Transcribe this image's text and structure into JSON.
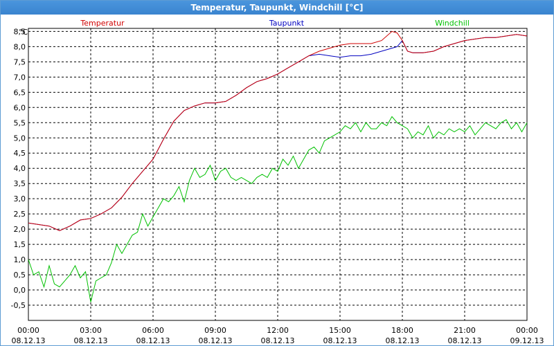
{
  "window": {
    "title": "Temperatur, Taupunkt, Windchill [°C]"
  },
  "chart_data": {
    "type": "line",
    "title": "Temperatur, Taupunkt, Windchill [°C]",
    "ylabel": "°C",
    "ylim": [
      -1.0,
      8.6
    ],
    "y_ticks": [
      "8,5",
      "8,0",
      "7,5",
      "7,0",
      "6,5",
      "6,0",
      "5,5",
      "5,0",
      "4,5",
      "4,0",
      "3,5",
      "3,0",
      "2,5",
      "2,0",
      "1,5",
      "1,0",
      "0,5",
      "0,0",
      "-0,5"
    ],
    "x_ticks": [
      {
        "time": "00:00",
        "date": "08.12.13"
      },
      {
        "time": "03:00",
        "date": "08.12.13"
      },
      {
        "time": "06:00",
        "date": "08.12.13"
      },
      {
        "time": "09:00",
        "date": "08.12.13"
      },
      {
        "time": "12:00",
        "date": "08.12.13"
      },
      {
        "time": "15:00",
        "date": "08.12.13"
      },
      {
        "time": "18:00",
        "date": "08.12.13"
      },
      {
        "time": "21:00",
        "date": "08.12.13"
      },
      {
        "time": "00:00",
        "date": "09.12.13"
      }
    ],
    "x_unit": "hours since 08.12.13 00:00",
    "xlim": [
      0,
      24
    ],
    "grid": true,
    "legend_placement": "top",
    "series": [
      {
        "name": "Temperatur",
        "color": "#d00000",
        "x": [
          0,
          0.5,
          1,
          1.5,
          2,
          2.5,
          3,
          3.5,
          4,
          4.5,
          5,
          5.5,
          6,
          6.5,
          7,
          7.5,
          8,
          8.5,
          9,
          9.5,
          10,
          10.5,
          11,
          11.5,
          12,
          12.5,
          13,
          13.5,
          14,
          14.5,
          15,
          15.5,
          16,
          16.5,
          17,
          17.5,
          17.75,
          18,
          18.25,
          18.5,
          19,
          19.5,
          20,
          20.5,
          21,
          21.5,
          22,
          22.5,
          23,
          23.5,
          24
        ],
        "y": [
          2.2,
          2.15,
          2.1,
          1.95,
          2.1,
          2.3,
          2.35,
          2.5,
          2.7,
          3.05,
          3.5,
          3.9,
          4.3,
          4.95,
          5.55,
          5.9,
          6.05,
          6.15,
          6.15,
          6.2,
          6.4,
          6.65,
          6.85,
          6.95,
          7.1,
          7.3,
          7.5,
          7.7,
          7.85,
          7.95,
          8.05,
          8.1,
          8.1,
          8.1,
          8.2,
          8.5,
          8.45,
          8.2,
          7.85,
          7.8,
          7.8,
          7.85,
          8.0,
          8.1,
          8.2,
          8.25,
          8.3,
          8.3,
          8.35,
          8.4,
          8.35
        ]
      },
      {
        "name": "Taupunkt",
        "color": "#0000c0",
        "x": [
          0,
          0.5,
          1,
          1.5,
          2,
          2.5,
          3,
          3.5,
          4,
          4.5,
          5,
          5.5,
          6,
          6.5,
          7,
          7.5,
          8,
          8.5,
          9,
          9.5,
          10,
          10.5,
          11,
          11.5,
          12,
          12.5,
          13,
          13.5,
          14,
          14.5,
          15,
          15.5,
          16,
          16.5,
          17,
          17.5,
          17.75,
          18,
          18.25,
          18.5,
          19,
          19.5,
          20,
          20.5,
          21,
          21.5,
          22,
          22.5,
          23,
          23.5,
          24
        ],
        "y": [
          2.2,
          2.15,
          2.1,
          1.95,
          2.1,
          2.3,
          2.35,
          2.5,
          2.7,
          3.05,
          3.5,
          3.9,
          4.3,
          4.95,
          5.55,
          5.9,
          6.05,
          6.15,
          6.15,
          6.2,
          6.4,
          6.65,
          6.85,
          6.95,
          7.1,
          7.3,
          7.5,
          7.7,
          7.75,
          7.7,
          7.65,
          7.7,
          7.7,
          7.75,
          7.85,
          7.95,
          8.0,
          8.2,
          7.85,
          7.8,
          7.8,
          7.85,
          8.0,
          8.1,
          8.2,
          8.25,
          8.3,
          8.3,
          8.35,
          8.4,
          8.35
        ]
      },
      {
        "name": "Windchill",
        "color": "#00c000",
        "x": [
          0,
          0.25,
          0.5,
          0.75,
          1,
          1.25,
          1.5,
          1.75,
          2,
          2.25,
          2.5,
          2.75,
          3,
          3.25,
          3.5,
          3.75,
          4,
          4.25,
          4.5,
          4.75,
          5,
          5.25,
          5.5,
          5.75,
          6,
          6.25,
          6.5,
          6.75,
          7,
          7.25,
          7.5,
          7.75,
          8,
          8.25,
          8.5,
          8.75,
          9,
          9.25,
          9.5,
          9.75,
          10,
          10.25,
          10.5,
          10.75,
          11,
          11.25,
          11.5,
          11.75,
          12,
          12.25,
          12.5,
          12.75,
          13,
          13.25,
          13.5,
          13.75,
          14,
          14.25,
          14.5,
          14.75,
          15,
          15.25,
          15.5,
          15.75,
          16,
          16.25,
          16.5,
          16.75,
          17,
          17.25,
          17.5,
          17.75,
          18,
          18.25,
          18.5,
          18.75,
          19,
          19.25,
          19.5,
          19.75,
          20,
          20.25,
          20.5,
          20.75,
          21,
          21.25,
          21.5,
          21.75,
          22,
          22.25,
          22.5,
          22.75,
          23,
          23.25,
          23.5,
          23.75,
          24
        ],
        "y": [
          1.0,
          0.5,
          0.6,
          0.1,
          0.8,
          0.2,
          0.1,
          0.3,
          0.5,
          0.8,
          0.4,
          0.6,
          -0.4,
          0.3,
          0.4,
          0.5,
          0.9,
          1.5,
          1.2,
          1.5,
          1.8,
          1.9,
          2.5,
          2.1,
          2.4,
          2.7,
          3.0,
          2.9,
          3.1,
          3.4,
          2.9,
          3.6,
          4.0,
          3.7,
          3.8,
          4.1,
          3.6,
          3.9,
          4.0,
          3.7,
          3.6,
          3.7,
          3.6,
          3.5,
          3.7,
          3.8,
          3.7,
          4.0,
          3.9,
          4.3,
          4.1,
          4.4,
          4.0,
          4.3,
          4.6,
          4.7,
          4.5,
          4.9,
          5.0,
          5.1,
          5.2,
          5.4,
          5.3,
          5.5,
          5.2,
          5.5,
          5.3,
          5.3,
          5.5,
          5.4,
          5.7,
          5.5,
          5.4,
          5.3,
          5.0,
          5.2,
          5.1,
          5.4,
          5.0,
          5.2,
          5.1,
          5.3,
          5.2,
          5.3,
          5.2,
          5.4,
          5.1,
          5.3,
          5.5,
          5.4,
          5.3,
          5.5,
          5.6,
          5.3,
          5.5,
          5.2,
          5.5
        ]
      }
    ]
  }
}
